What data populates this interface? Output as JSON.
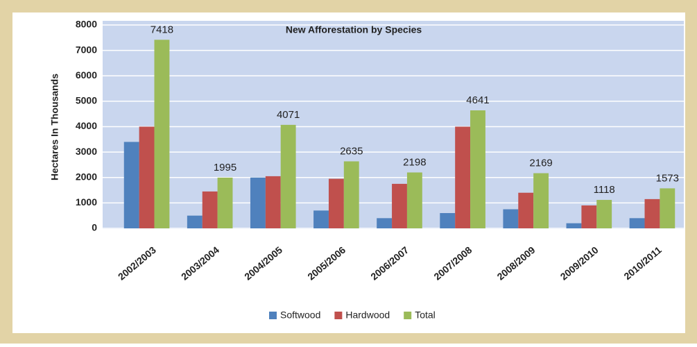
{
  "chart_data": {
    "type": "bar",
    "title": "New Afforestation by Species",
    "y_label": "Hectares In Thousands",
    "categories": [
      "2002/2003",
      "2003/2004",
      "2004/2005",
      "2005/2006",
      "2006/2007",
      "2007/2008",
      "2008/2009",
      "2009/2010",
      "2010/2011"
    ],
    "series": [
      {
        "name": "Softwood",
        "color": "#4f81bd",
        "values": [
          3400,
          500,
          2000,
          700,
          400,
          600,
          750,
          200,
          400
        ]
      },
      {
        "name": "Hardwood",
        "color": "#c0504d",
        "values": [
          4000,
          1450,
          2050,
          1950,
          1750,
          4000,
          1400,
          900,
          1150
        ]
      },
      {
        "name": "Total",
        "color": "#9bbb59",
        "values": [
          7418,
          1995,
          4071,
          2635,
          2198,
          4641,
          2169,
          1118,
          1573
        ],
        "data_labels": true
      }
    ],
    "ylim": [
      0,
      8000
    ],
    "yticks": [
      0,
      1000,
      2000,
      3000,
      4000,
      5000,
      6000,
      7000,
      8000
    ],
    "grid": true,
    "legend": "bottom"
  }
}
